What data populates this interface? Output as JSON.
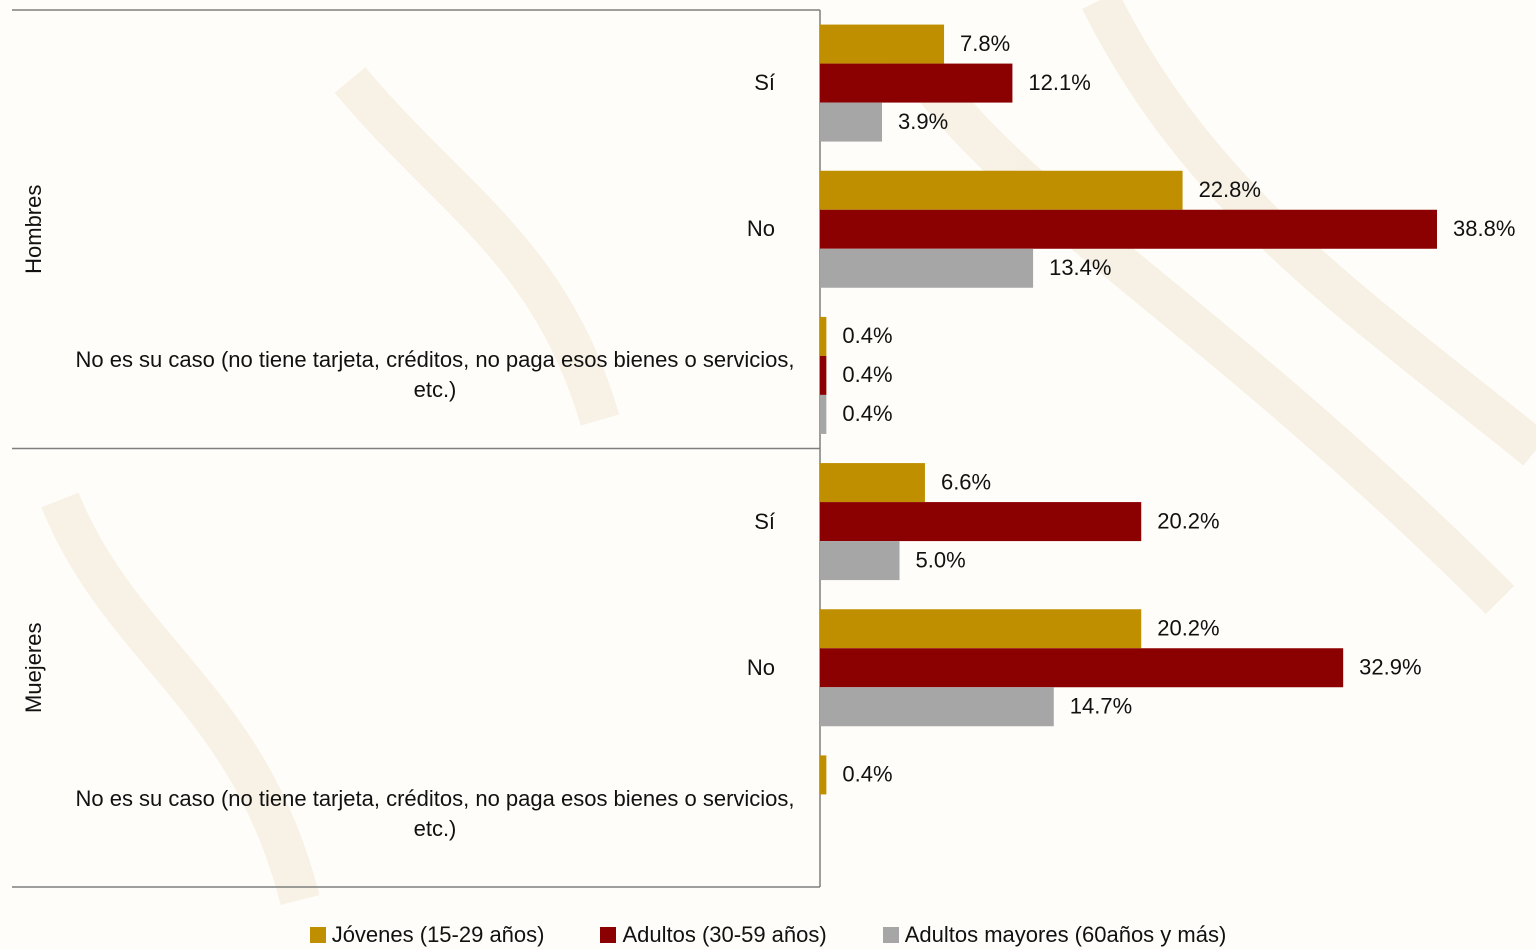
{
  "chart_data": {
    "type": "bar",
    "orientation": "horizontal",
    "groups": [
      "Hombres",
      "Muejeres"
    ],
    "categories": [
      "Sí",
      "No",
      "No es su caso (no tiene tarjeta, créditos, no paga esos bienes o servicios, etc.)",
      "Sí",
      "No",
      "No es su caso (no tiene tarjeta, créditos, no paga esos bienes o servicios, etc.)"
    ],
    "series": [
      {
        "name": "Jóvenes (15-29 años)",
        "color": "#bf8f00",
        "values": [
          7.8,
          22.8,
          0.4,
          6.6,
          20.2,
          0.4
        ],
        "value_labels": [
          "7.8%",
          "22.8%",
          "0.4%",
          "6.6%",
          "20.2%",
          "0.4%"
        ]
      },
      {
        "name": "Adultos (30-59 años)",
        "color": "#8b0000",
        "values": [
          12.1,
          38.8,
          0.4,
          20.2,
          32.9,
          null
        ],
        "value_labels": [
          "12.1%",
          "38.8%",
          "0.4%",
          "20.2%",
          "32.9%",
          null
        ]
      },
      {
        "name": "Adultos mayores (60años y más)",
        "color": "#a6a6a6",
        "values": [
          3.9,
          13.4,
          0.4,
          5.0,
          14.7,
          null
        ],
        "value_labels": [
          "3.9%",
          "13.4%",
          "0.4%",
          "5.0%",
          "14.7%",
          null
        ]
      }
    ]
  }
}
